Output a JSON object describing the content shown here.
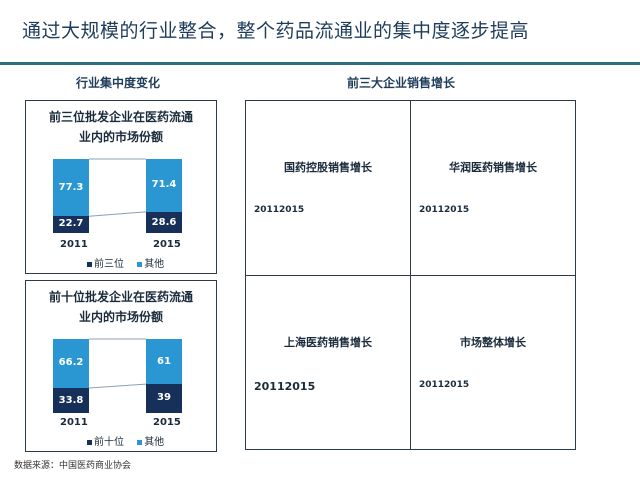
{
  "title": "通过大规模的行业整合，整个药品流通业的集中度逐步提高",
  "left_heading": "行业集中度变化",
  "right_heading": "前三大企业销售增长",
  "colors": {
    "top": "#17305a",
    "other": "#2a97d3",
    "rule": "#2e6e82",
    "title": "#1f3d5b"
  },
  "chart_data": [
    {
      "type": "bar",
      "title": "前三位批发企业在医药流通业内的市场份额",
      "title_lines": [
        "前三位批发企业在医药流通",
        "业内的市场份额"
      ],
      "categories": [
        "2011",
        "2015"
      ],
      "series": [
        {
          "name": "前三位",
          "values": [
            22.7,
            28.6
          ]
        },
        {
          "name": "其他",
          "values": [
            77.3,
            71.4
          ]
        }
      ],
      "labels": {
        "top": [
          "22.7",
          "28.6"
        ],
        "other": [
          "77.3",
          "71.4"
        ]
      },
      "ylim": [
        0,
        100
      ]
    },
    {
      "type": "bar",
      "title": "前十位批发企业在医药流通业内的市场份额",
      "title_lines": [
        "前十位批发企业在医药流通",
        "业内的市场份额"
      ],
      "categories": [
        "2011",
        "2015"
      ],
      "series": [
        {
          "name": "前十位",
          "values": [
            33.8,
            39
          ]
        },
        {
          "name": "其他",
          "values": [
            66.2,
            61
          ]
        }
      ],
      "labels": {
        "top": [
          "33.8",
          "39"
        ],
        "other": [
          "66.2",
          "61"
        ]
      },
      "ylim": [
        0,
        100
      ]
    }
  ],
  "grid_cells": [
    {
      "title": "国药控股销售增长",
      "value": "20112015"
    },
    {
      "title": "华润医药销售增长",
      "value": "20112015"
    },
    {
      "title": "上海医药销售增长",
      "value": "20112015"
    },
    {
      "title": "市场整体增长",
      "value": "20112015"
    }
  ],
  "source": "数据来源：中国医药商业协会"
}
